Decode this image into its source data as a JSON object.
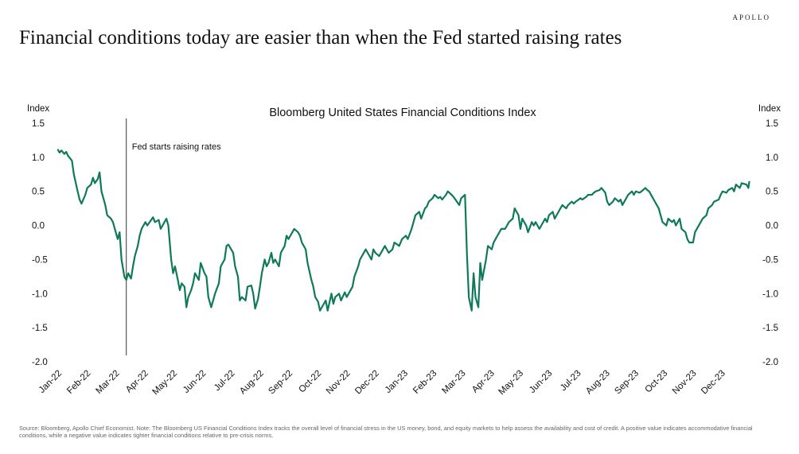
{
  "brand": "APOLLO",
  "headline": "Financial conditions today are easier than when the Fed started raising rates",
  "footnote": "Source: Bloomberg, Apollo Chief Economist. Note: The Bloomberg US Financial Conditions Index tracks the overall level of financial stress in the US money, bond, and equity markets to help assess the availability and cost of credit. A positive value indicates accommodative financial conditions, while a negative value indicates tighter financial conditions relative to pre-crisis norms.",
  "chart_data": {
    "type": "line",
    "title": "Bloomberg United States Financial Conditions Index",
    "ylabel_left": "Index",
    "ylabel_right": "Index",
    "ylim": [
      -2.0,
      1.5
    ],
    "yticks": [
      "1.5",
      "1.0",
      "0.5",
      "0.0",
      "-0.5",
      "-1.0",
      "-1.5",
      "-2.0"
    ],
    "x_tick_labels": [
      "Jan-22",
      "Feb-22",
      "Mar-22",
      "Apr-22",
      "May-22",
      "Jun-22",
      "Jul-22",
      "Aug-22",
      "Sep-22",
      "Oct-22",
      "Nov-22",
      "Dec-22",
      "Jan-23",
      "Feb-23",
      "Mar-23",
      "Apr-23",
      "May-23",
      "Jun-23",
      "Jul-23",
      "Aug-23",
      "Sep-23",
      "Oct-23",
      "Nov-23",
      "Dec-23"
    ],
    "x_range": [
      "2022-01-01",
      "2023-12-31"
    ],
    "annotation": {
      "label": "Fed starts raising rates",
      "x": "2022-03-16"
    },
    "grid": false,
    "line_color": "#0e7a5a",
    "series": [
      {
        "values": [
          [
            "2022-01-03",
            1.12
          ],
          [
            "2022-01-05",
            1.07
          ],
          [
            "2022-01-07",
            1.1
          ],
          [
            "2022-01-10",
            1.05
          ],
          [
            "2022-01-12",
            1.08
          ],
          [
            "2022-01-14",
            1.02
          ],
          [
            "2022-01-18",
            0.95
          ],
          [
            "2022-01-20",
            0.75
          ],
          [
            "2022-01-24",
            0.5
          ],
          [
            "2022-01-26",
            0.38
          ],
          [
            "2022-01-28",
            0.32
          ],
          [
            "2022-02-01",
            0.45
          ],
          [
            "2022-02-03",
            0.55
          ],
          [
            "2022-02-07",
            0.6
          ],
          [
            "2022-02-09",
            0.7
          ],
          [
            "2022-02-11",
            0.62
          ],
          [
            "2022-02-14",
            0.68
          ],
          [
            "2022-02-16",
            0.78
          ],
          [
            "2022-02-18",
            0.5
          ],
          [
            "2022-02-22",
            0.3
          ],
          [
            "2022-02-24",
            0.15
          ],
          [
            "2022-02-28",
            0.1
          ],
          [
            "2022-03-02",
            0.05
          ],
          [
            "2022-03-04",
            -0.05
          ],
          [
            "2022-03-07",
            -0.2
          ],
          [
            "2022-03-09",
            -0.1
          ],
          [
            "2022-03-11",
            -0.5
          ],
          [
            "2022-03-14",
            -0.75
          ],
          [
            "2022-03-16",
            -0.8
          ],
          [
            "2022-03-18",
            -0.7
          ],
          [
            "2022-03-21",
            -0.78
          ],
          [
            "2022-03-23",
            -0.6
          ],
          [
            "2022-03-25",
            -0.45
          ],
          [
            "2022-03-28",
            -0.3
          ],
          [
            "2022-03-30",
            -0.15
          ],
          [
            "2022-04-01",
            -0.05
          ],
          [
            "2022-04-05",
            0.05
          ],
          [
            "2022-04-07",
            0.0
          ],
          [
            "2022-04-11",
            0.08
          ],
          [
            "2022-04-13",
            0.12
          ],
          [
            "2022-04-15",
            0.05
          ],
          [
            "2022-04-19",
            0.08
          ],
          [
            "2022-04-21",
            -0.05
          ],
          [
            "2022-04-25",
            0.05
          ],
          [
            "2022-04-27",
            0.1
          ],
          [
            "2022-04-29",
            0.0
          ],
          [
            "2022-05-02",
            -0.5
          ],
          [
            "2022-05-04",
            -0.7
          ],
          [
            "2022-05-06",
            -0.6
          ],
          [
            "2022-05-09",
            -0.8
          ],
          [
            "2022-05-11",
            -0.95
          ],
          [
            "2022-05-13",
            -0.85
          ],
          [
            "2022-05-16",
            -0.9
          ],
          [
            "2022-05-18",
            -1.2
          ],
          [
            "2022-05-20",
            -1.05
          ],
          [
            "2022-05-23",
            -0.95
          ],
          [
            "2022-05-25",
            -0.85
          ],
          [
            "2022-05-27",
            -0.7
          ],
          [
            "2022-05-31",
            -0.8
          ],
          [
            "2022-06-02",
            -0.55
          ],
          [
            "2022-06-06",
            -0.7
          ],
          [
            "2022-06-08",
            -0.75
          ],
          [
            "2022-06-10",
            -1.05
          ],
          [
            "2022-06-13",
            -1.2
          ],
          [
            "2022-06-15",
            -1.1
          ],
          [
            "2022-06-17",
            -1.0
          ],
          [
            "2022-06-21",
            -0.85
          ],
          [
            "2022-06-23",
            -0.6
          ],
          [
            "2022-06-27",
            -0.5
          ],
          [
            "2022-06-29",
            -0.3
          ],
          [
            "2022-07-01",
            -0.28
          ],
          [
            "2022-07-06",
            -0.4
          ],
          [
            "2022-07-08",
            -0.6
          ],
          [
            "2022-07-11",
            -0.75
          ],
          [
            "2022-07-13",
            -1.1
          ],
          [
            "2022-07-15",
            -1.05
          ],
          [
            "2022-07-19",
            -1.1
          ],
          [
            "2022-07-21",
            -0.9
          ],
          [
            "2022-07-25",
            -0.88
          ],
          [
            "2022-07-27",
            -1.0
          ],
          [
            "2022-07-29",
            -1.22
          ],
          [
            "2022-08-01",
            -1.08
          ],
          [
            "2022-08-03",
            -0.9
          ],
          [
            "2022-08-05",
            -0.7
          ],
          [
            "2022-08-08",
            -0.5
          ],
          [
            "2022-08-10",
            -0.6
          ],
          [
            "2022-08-12",
            -0.55
          ],
          [
            "2022-08-15",
            -0.4
          ],
          [
            "2022-08-17",
            -0.55
          ],
          [
            "2022-08-19",
            -0.5
          ],
          [
            "2022-08-23",
            -0.6
          ],
          [
            "2022-08-25",
            -0.4
          ],
          [
            "2022-08-29",
            -0.3
          ],
          [
            "2022-08-31",
            -0.15
          ],
          [
            "2022-09-02",
            -0.2
          ],
          [
            "2022-09-06",
            -0.1
          ],
          [
            "2022-09-08",
            -0.05
          ],
          [
            "2022-09-12",
            -0.1
          ],
          [
            "2022-09-14",
            -0.15
          ],
          [
            "2022-09-16",
            -0.25
          ],
          [
            "2022-09-20",
            -0.35
          ],
          [
            "2022-09-22",
            -0.55
          ],
          [
            "2022-09-26",
            -0.8
          ],
          [
            "2022-09-28",
            -0.9
          ],
          [
            "2022-09-30",
            -1.05
          ],
          [
            "2022-10-03",
            -1.12
          ],
          [
            "2022-10-05",
            -1.25
          ],
          [
            "2022-10-07",
            -1.2
          ],
          [
            "2022-10-11",
            -1.1
          ],
          [
            "2022-10-13",
            -1.25
          ],
          [
            "2022-10-17",
            -1.0
          ],
          [
            "2022-10-19",
            -1.15
          ],
          [
            "2022-10-21",
            -1.05
          ],
          [
            "2022-10-25",
            -1.0
          ],
          [
            "2022-10-27",
            -1.1
          ],
          [
            "2022-10-31",
            -0.98
          ],
          [
            "2022-11-02",
            -1.05
          ],
          [
            "2022-11-04",
            -1.0
          ],
          [
            "2022-11-08",
            -0.9
          ],
          [
            "2022-11-10",
            -0.75
          ],
          [
            "2022-11-14",
            -0.6
          ],
          [
            "2022-11-16",
            -0.5
          ],
          [
            "2022-11-18",
            -0.45
          ],
          [
            "2022-11-22",
            -0.35
          ],
          [
            "2022-11-24",
            -0.4
          ],
          [
            "2022-11-28",
            -0.5
          ],
          [
            "2022-11-30",
            -0.35
          ],
          [
            "2022-12-02",
            -0.4
          ],
          [
            "2022-12-06",
            -0.45
          ],
          [
            "2022-12-08",
            -0.4
          ],
          [
            "2022-12-12",
            -0.3
          ],
          [
            "2022-12-14",
            -0.35
          ],
          [
            "2022-12-16",
            -0.4
          ],
          [
            "2022-12-20",
            -0.35
          ],
          [
            "2022-12-22",
            -0.25
          ],
          [
            "2022-12-27",
            -0.3
          ],
          [
            "2022-12-30",
            -0.2
          ],
          [
            "2023-01-03",
            -0.15
          ],
          [
            "2023-01-05",
            -0.2
          ],
          [
            "2023-01-09",
            -0.05
          ],
          [
            "2023-01-11",
            0.05
          ],
          [
            "2023-01-13",
            0.15
          ],
          [
            "2023-01-17",
            0.2
          ],
          [
            "2023-01-19",
            0.1
          ],
          [
            "2023-01-23",
            0.25
          ],
          [
            "2023-01-25",
            0.28
          ],
          [
            "2023-01-27",
            0.35
          ],
          [
            "2023-01-31",
            0.4
          ],
          [
            "2023-02-02",
            0.45
          ],
          [
            "2023-02-06",
            0.4
          ],
          [
            "2023-02-08",
            0.42
          ],
          [
            "2023-02-10",
            0.38
          ],
          [
            "2023-02-14",
            0.45
          ],
          [
            "2023-02-16",
            0.5
          ],
          [
            "2023-02-20",
            0.45
          ],
          [
            "2023-02-22",
            0.42
          ],
          [
            "2023-02-24",
            0.38
          ],
          [
            "2023-02-28",
            0.3
          ],
          [
            "2023-03-02",
            0.4
          ],
          [
            "2023-03-06",
            0.45
          ],
          [
            "2023-03-08",
            -0.4
          ],
          [
            "2023-03-10",
            -1.05
          ],
          [
            "2023-03-13",
            -1.25
          ],
          [
            "2023-03-15",
            -0.7
          ],
          [
            "2023-03-17",
            -1.05
          ],
          [
            "2023-03-20",
            -1.2
          ],
          [
            "2023-03-22",
            -0.55
          ],
          [
            "2023-03-24",
            -0.8
          ],
          [
            "2023-03-28",
            -0.5
          ],
          [
            "2023-03-30",
            -0.3
          ],
          [
            "2023-04-03",
            -0.35
          ],
          [
            "2023-04-05",
            -0.25
          ],
          [
            "2023-04-07",
            -0.2
          ],
          [
            "2023-04-11",
            -0.1
          ],
          [
            "2023-04-13",
            -0.05
          ],
          [
            "2023-04-17",
            -0.05
          ],
          [
            "2023-04-19",
            0.0
          ],
          [
            "2023-04-21",
            0.05
          ],
          [
            "2023-04-25",
            0.1
          ],
          [
            "2023-04-27",
            0.25
          ],
          [
            "2023-05-01",
            0.15
          ],
          [
            "2023-05-03",
            -0.05
          ],
          [
            "2023-05-05",
            0.1
          ],
          [
            "2023-05-09",
            0.0
          ],
          [
            "2023-05-11",
            -0.1
          ],
          [
            "2023-05-15",
            0.05
          ],
          [
            "2023-05-17",
            0.0
          ],
          [
            "2023-05-19",
            0.05
          ],
          [
            "2023-05-23",
            -0.05
          ],
          [
            "2023-05-25",
            0.0
          ],
          [
            "2023-05-29",
            0.1
          ],
          [
            "2023-05-31",
            0.05
          ],
          [
            "2023-06-02",
            0.15
          ],
          [
            "2023-06-06",
            0.2
          ],
          [
            "2023-06-08",
            0.1
          ],
          [
            "2023-06-12",
            0.2
          ],
          [
            "2023-06-14",
            0.25
          ],
          [
            "2023-06-16",
            0.3
          ],
          [
            "2023-06-20",
            0.25
          ],
          [
            "2023-06-22",
            0.3
          ],
          [
            "2023-06-26",
            0.35
          ],
          [
            "2023-06-28",
            0.32
          ],
          [
            "2023-06-30",
            0.35
          ],
          [
            "2023-07-05",
            0.4
          ],
          [
            "2023-07-07",
            0.38
          ],
          [
            "2023-07-11",
            0.42
          ],
          [
            "2023-07-13",
            0.45
          ],
          [
            "2023-07-17",
            0.45
          ],
          [
            "2023-07-19",
            0.48
          ],
          [
            "2023-07-21",
            0.5
          ],
          [
            "2023-07-25",
            0.52
          ],
          [
            "2023-07-27",
            0.55
          ],
          [
            "2023-07-31",
            0.48
          ],
          [
            "2023-08-02",
            0.35
          ],
          [
            "2023-08-04",
            0.3
          ],
          [
            "2023-08-08",
            0.35
          ],
          [
            "2023-08-10",
            0.4
          ],
          [
            "2023-08-14",
            0.35
          ],
          [
            "2023-08-16",
            0.38
          ],
          [
            "2023-08-18",
            0.3
          ],
          [
            "2023-08-22",
            0.4
          ],
          [
            "2023-08-24",
            0.45
          ],
          [
            "2023-08-28",
            0.5
          ],
          [
            "2023-08-30",
            0.45
          ],
          [
            "2023-09-01",
            0.5
          ],
          [
            "2023-09-05",
            0.48
          ],
          [
            "2023-09-07",
            0.5
          ],
          [
            "2023-09-11",
            0.55
          ],
          [
            "2023-09-13",
            0.52
          ],
          [
            "2023-09-15",
            0.5
          ],
          [
            "2023-09-19",
            0.4
          ],
          [
            "2023-09-21",
            0.35
          ],
          [
            "2023-09-25",
            0.25
          ],
          [
            "2023-09-27",
            0.15
          ],
          [
            "2023-09-29",
            0.05
          ],
          [
            "2023-10-03",
            0.0
          ],
          [
            "2023-10-05",
            0.1
          ],
          [
            "2023-10-09",
            0.05
          ],
          [
            "2023-10-11",
            0.08
          ],
          [
            "2023-10-13",
            0.0
          ],
          [
            "2023-10-17",
            0.1
          ],
          [
            "2023-10-19",
            -0.05
          ],
          [
            "2023-10-23",
            -0.1
          ],
          [
            "2023-10-25",
            -0.2
          ],
          [
            "2023-10-27",
            -0.25
          ],
          [
            "2023-10-31",
            -0.25
          ],
          [
            "2023-11-02",
            -0.1
          ],
          [
            "2023-11-06",
            0.0
          ],
          [
            "2023-11-08",
            0.05
          ],
          [
            "2023-11-10",
            0.1
          ],
          [
            "2023-11-14",
            0.15
          ],
          [
            "2023-11-16",
            0.25
          ],
          [
            "2023-11-20",
            0.3
          ],
          [
            "2023-11-22",
            0.35
          ],
          [
            "2023-11-27",
            0.38
          ],
          [
            "2023-11-29",
            0.45
          ],
          [
            "2023-12-01",
            0.5
          ],
          [
            "2023-12-05",
            0.48
          ],
          [
            "2023-12-07",
            0.52
          ],
          [
            "2023-12-11",
            0.55
          ],
          [
            "2023-12-13",
            0.5
          ],
          [
            "2023-12-15",
            0.6
          ],
          [
            "2023-12-19",
            0.55
          ],
          [
            "2023-12-21",
            0.62
          ],
          [
            "2023-12-26",
            0.6
          ],
          [
            "2023-12-28",
            0.55
          ],
          [
            "2023-12-29",
            0.65
          ]
        ]
      }
    ]
  }
}
